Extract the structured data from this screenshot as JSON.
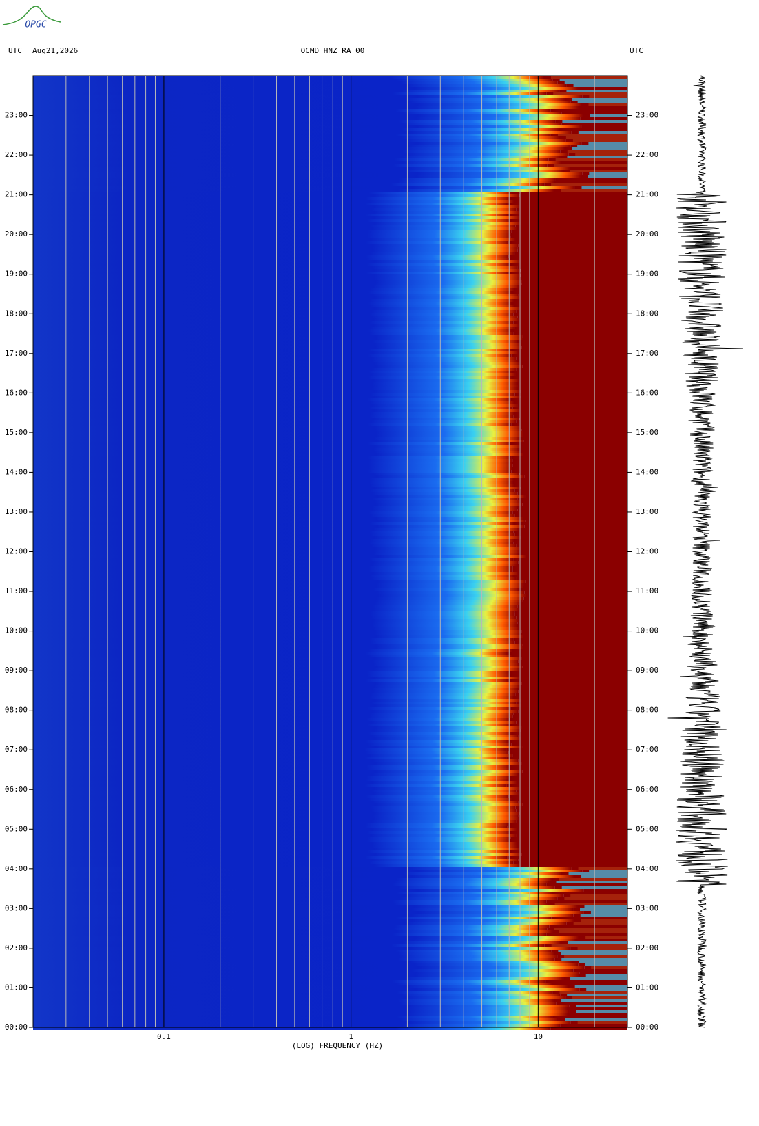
{
  "logo": "OPGC",
  "chart_data": {
    "type": "spectrogram",
    "title": "OCMD HNZ RA 00",
    "left_header": [
      "UTC",
      "Aug21,2026"
    ],
    "right_header": "UTC",
    "x_label": "(LOG) FREQUENCY (HZ)",
    "x_scale": "log",
    "xlim": [
      0.02,
      30
    ],
    "xticks": [
      0.1,
      1,
      10
    ],
    "xminorticks": [
      0.03,
      0.04,
      0.05,
      0.06,
      0.07,
      0.08,
      0.09,
      0.2,
      0.3,
      0.4,
      0.5,
      0.6,
      0.7,
      0.8,
      0.9,
      2,
      3,
      4,
      5,
      6,
      7,
      8,
      9,
      20
    ],
    "ylim": [
      0,
      24
    ],
    "yticks": [
      {
        "value": 0,
        "label": "00:00"
      },
      {
        "value": 1,
        "label": "01:00"
      },
      {
        "value": 2,
        "label": "02:00"
      },
      {
        "value": 3,
        "label": "03:00"
      },
      {
        "value": 4,
        "label": "04:00"
      },
      {
        "value": 5,
        "label": "05:00"
      },
      {
        "value": 6,
        "label": "06:00"
      },
      {
        "value": 7,
        "label": "07:00"
      },
      {
        "value": 8,
        "label": "08:00"
      },
      {
        "value": 9,
        "label": "09:00"
      },
      {
        "value": 10,
        "label": "10:00"
      },
      {
        "value": 11,
        "label": "11:00"
      },
      {
        "value": 12,
        "label": "12:00"
      },
      {
        "value": 13,
        "label": "13:00"
      },
      {
        "value": 14,
        "label": "14:00"
      },
      {
        "value": 15,
        "label": "15:00"
      },
      {
        "value": 16,
        "label": "16:00"
      },
      {
        "value": 17,
        "label": "17:00"
      },
      {
        "value": 18,
        "label": "18:00"
      },
      {
        "value": 19,
        "label": "19:00"
      },
      {
        "value": 20,
        "label": "20:00"
      },
      {
        "value": 21,
        "label": "21:00"
      },
      {
        "value": 22,
        "label": "22:00"
      },
      {
        "value": 23,
        "label": "23:00"
      }
    ]
  }
}
